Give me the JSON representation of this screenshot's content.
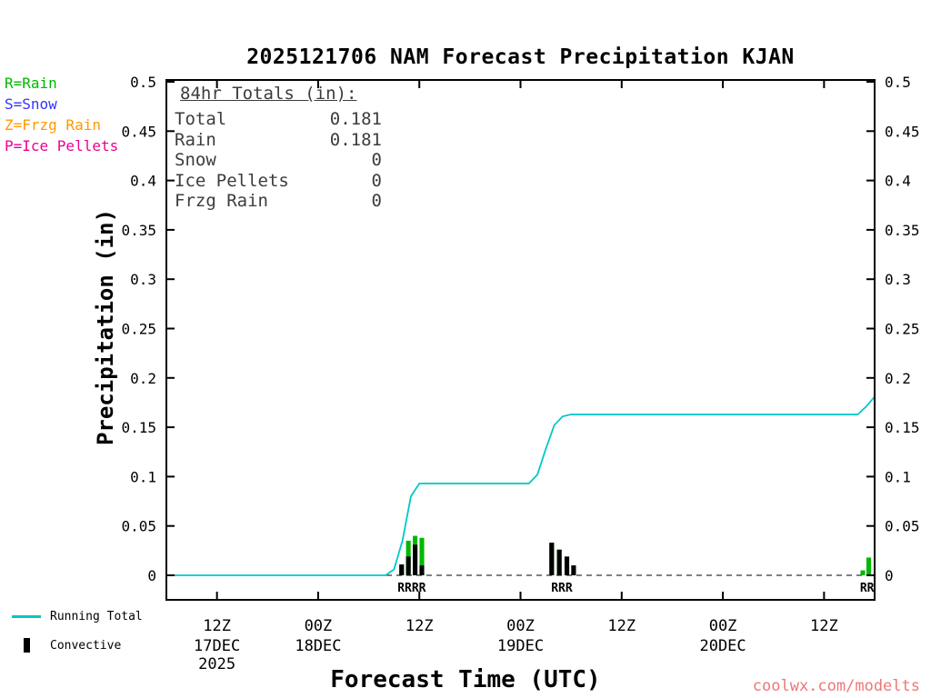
{
  "chart_data": {
    "type": "line",
    "title": "2025121706 NAM Forecast Precipitation KJAN",
    "xlabel": "Forecast Time (UTC)",
    "ylabel": "Precipitation (in)",
    "ylim": [
      0,
      0.5
    ],
    "x_range": [
      0,
      84
    ],
    "grid": false,
    "y_ticks": [
      {
        "value": 0,
        "label": "0"
      },
      {
        "value": 0.05,
        "label": "0.05"
      },
      {
        "value": 0.1,
        "label": "0.1"
      },
      {
        "value": 0.15,
        "label": "0.15"
      },
      {
        "value": 0.2,
        "label": "0.2"
      },
      {
        "value": 0.25,
        "label": "0.25"
      },
      {
        "value": 0.3,
        "label": "0.3"
      },
      {
        "value": 0.35,
        "label": "0.35"
      },
      {
        "value": 0.4,
        "label": "0.4"
      },
      {
        "value": 0.45,
        "label": "0.45"
      },
      {
        "value": 0.5,
        "label": "0.5"
      }
    ],
    "x_ticks": [
      {
        "hour": 6,
        "label": "12Z",
        "date": "17DEC",
        "year": "2025"
      },
      {
        "hour": 18,
        "label": "00Z",
        "date": "18DEC"
      },
      {
        "hour": 30,
        "label": "12Z"
      },
      {
        "hour": 42,
        "label": "00Z",
        "date": "19DEC"
      },
      {
        "hour": 54,
        "label": "12Z"
      },
      {
        "hour": 66,
        "label": "00Z",
        "date": "20DEC"
      },
      {
        "hour": 78,
        "label": "12Z"
      }
    ],
    "series": [
      {
        "name": "Running Total",
        "color": "#00C8C8",
        "points": [
          [
            0,
            0
          ],
          [
            26,
            0
          ],
          [
            27,
            0.006
          ],
          [
            28,
            0.035
          ],
          [
            29,
            0.08
          ],
          [
            30,
            0.093
          ],
          [
            43,
            0.093
          ],
          [
            44,
            0.102
          ],
          [
            45,
            0.128
          ],
          [
            46,
            0.152
          ],
          [
            47,
            0.161
          ],
          [
            48,
            0.163
          ],
          [
            82,
            0.163
          ],
          [
            83,
            0.171
          ],
          [
            84,
            0.181
          ]
        ]
      }
    ],
    "bars": {
      "total_color": "#00B800",
      "convective_color": "#000000",
      "width_hours": 0.55,
      "items": [
        {
          "hour": 27.9,
          "total": 0.011,
          "convective": 0.011
        },
        {
          "hour": 28.7,
          "total": 0.035,
          "convective": 0.019
        },
        {
          "hour": 29.5,
          "total": 0.04,
          "convective": 0.031
        },
        {
          "hour": 30.3,
          "total": 0.038,
          "convective": 0.01
        },
        {
          "hour": 45.7,
          "total": 0.033,
          "convective": 0.033
        },
        {
          "hour": 46.6,
          "total": 0.026,
          "convective": 0.026
        },
        {
          "hour": 47.5,
          "total": 0.019,
          "convective": 0.019
        },
        {
          "hour": 48.3,
          "total": 0.01,
          "convective": 0.01
        },
        {
          "hour": 82.6,
          "total": 0.005,
          "convective": 0
        },
        {
          "hour": 83.3,
          "total": 0.018,
          "convective": 0
        }
      ]
    },
    "precip_type_labels": {
      "color": "#00A800",
      "items": [
        {
          "hour": 29.1,
          "text": "RRRR"
        },
        {
          "hour": 46.9,
          "text": "RRR"
        },
        {
          "hour": 83.1,
          "text": "RR"
        }
      ]
    },
    "zero_line": {
      "style": "dashed",
      "color": "#000000"
    }
  },
  "ptype_legend": {
    "items": [
      {
        "label": "R=Rain",
        "color": "#00B800"
      },
      {
        "label": "S=Snow",
        "color": "#3333FF"
      },
      {
        "label": "Z=Frzg Rain",
        "color": "#FF9900"
      },
      {
        "label": "P=Ice Pellets",
        "color": "#EE0090"
      }
    ]
  },
  "totals_box": {
    "heading": "84hr Totals (in):",
    "rows": [
      {
        "label": "Total",
        "value": "0.181"
      },
      {
        "label": "Rain",
        "value": "0.181"
      },
      {
        "label": "Snow",
        "value": "0"
      },
      {
        "label": "Ice Pellets",
        "value": "0"
      },
      {
        "label": "Frzg Rain",
        "value": "0"
      }
    ]
  },
  "bottom_legend": {
    "running_total_label": "Running Total",
    "convective_label": "Convective"
  },
  "watermark": {
    "text": "coolwx.com/modelts",
    "color": "#EE7777"
  }
}
